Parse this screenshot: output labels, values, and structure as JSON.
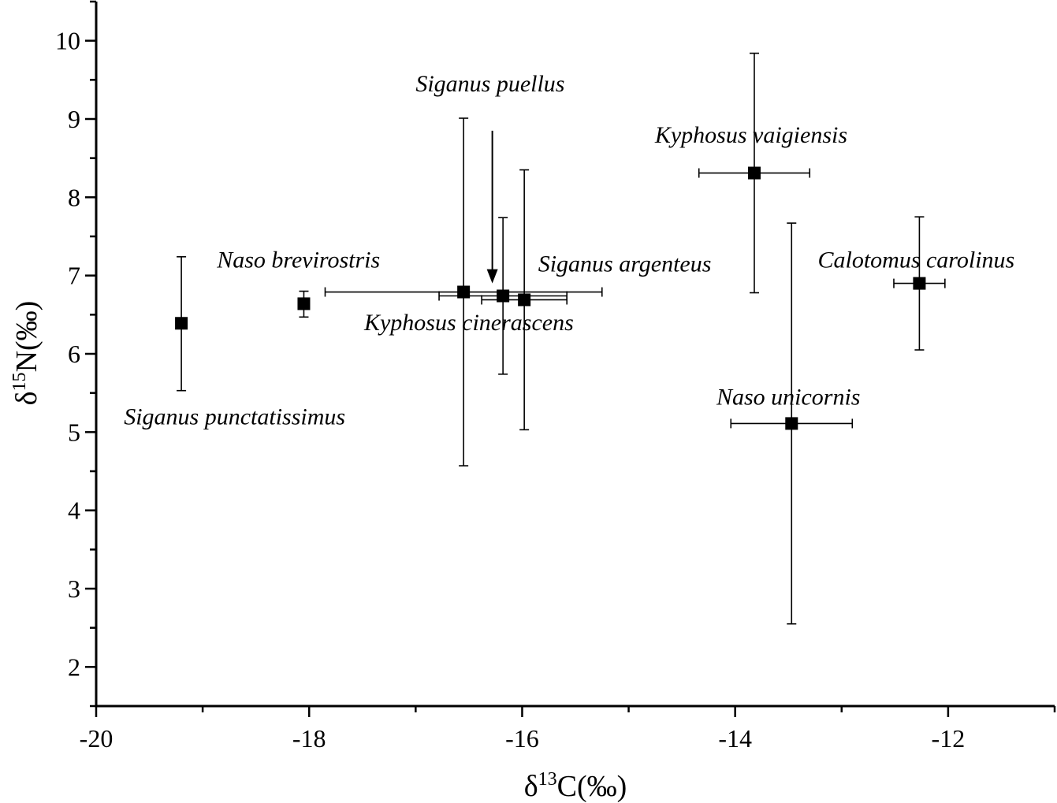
{
  "chart_data": {
    "type": "scatter",
    "xlabel": {
      "prefix": "δ",
      "sup": "13",
      "suffix": "C(‰)"
    },
    "ylabel": {
      "prefix": "δ",
      "sup": "15",
      "suffix": "N(‰)"
    },
    "xlim": [
      -20,
      -11
    ],
    "ylim": [
      1.5,
      10.5
    ],
    "x_ticks": [
      -20,
      -18,
      -16,
      -14,
      -12
    ],
    "x_minor_ticks": [
      -19,
      -17,
      -15,
      -13,
      -11
    ],
    "y_ticks": [
      2,
      3,
      4,
      5,
      6,
      7,
      8,
      9,
      10
    ],
    "grid": false,
    "marker": "square",
    "marker_color": "#000000",
    "points": [
      {
        "label": "Siganus punctatissimus",
        "x": -19.2,
        "y": 6.39,
        "y_err_low": 0.86,
        "y_err_high": 0.85,
        "x_err": 0
      },
      {
        "label": "Naso brevirostris",
        "x": -18.05,
        "y": 6.64,
        "y_err_low": 0.17,
        "y_err_high": 0.16,
        "x_err": 0.03
      },
      {
        "label": "Siganus puellus",
        "x": -16.55,
        "y": 6.79,
        "y_err_low": 2.22,
        "y_err_high": 2.22,
        "x_err": 1.3
      },
      {
        "label": "Kyphosus cinerascens",
        "x": -16.18,
        "y": 6.74,
        "y_err_low": 1.0,
        "y_err_high": 1.0,
        "x_err": 0.6
      },
      {
        "label": "Siganus argenteus",
        "x": -15.98,
        "y": 6.69,
        "y_err_low": 1.66,
        "y_err_high": 1.66,
        "x_err": 0.4
      },
      {
        "label": "Kyphosus vaigiensis",
        "x": -13.82,
        "y": 8.31,
        "y_err_low": 1.53,
        "y_err_high": 1.53,
        "x_err": 0.52
      },
      {
        "label": "Naso unicornis",
        "x": -13.47,
        "y": 5.11,
        "y_err_low": 2.56,
        "y_err_high": 2.56,
        "x_err": 0.57
      },
      {
        "label": "Calotomus carolinus",
        "x": -12.27,
        "y": 6.9,
        "y_err_low": 0.85,
        "y_err_high": 0.85,
        "x_err": 0.24
      }
    ],
    "annotations": [
      {
        "text": "Siganus puellus",
        "x": -16.3,
        "y": 9.35,
        "anchor": "middle"
      },
      {
        "text": "Kyphosus vaigiensis",
        "x": -13.85,
        "y": 8.7,
        "anchor": "middle"
      },
      {
        "text": "Naso brevirostris",
        "x": -18.1,
        "y": 7.1,
        "anchor": "middle"
      },
      {
        "text": "Siganus argenteus",
        "x": -15.85,
        "y": 7.05,
        "anchor": "start"
      },
      {
        "text": "Calotomus carolinus",
        "x": -12.3,
        "y": 7.1,
        "anchor": "middle"
      },
      {
        "text": "Kyphosus cinerascens",
        "x": -16.5,
        "y": 6.3,
        "anchor": "middle"
      },
      {
        "text": "Naso unicornis",
        "x": -13.5,
        "y": 5.35,
        "anchor": "middle"
      },
      {
        "text": "Siganus punctatissimus",
        "x": -18.7,
        "y": 5.1,
        "anchor": "middle"
      }
    ],
    "arrow": {
      "from": [
        -16.28,
        8.85
      ],
      "to": [
        -16.28,
        6.9
      ]
    }
  }
}
